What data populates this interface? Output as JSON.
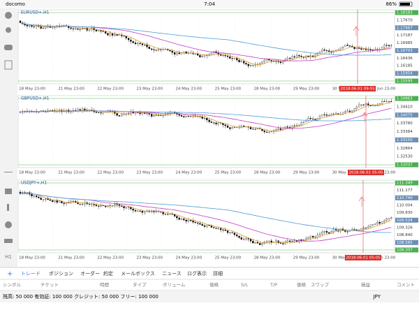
{
  "status": {
    "carrier": "docomo",
    "time": "7:04",
    "battery": "86%"
  },
  "charts": [
    {
      "symbol": "EURUSD+,H1",
      "cursor_time": "2018.06.01 09:55",
      "prices": [
        "1.18183",
        "1.17670",
        "1.17467",
        "1.17187",
        "1.16985",
        "1.16703",
        "1.16436",
        "1.16185",
        "1.15954",
        "1.15595"
      ]
    },
    {
      "symbol": "GBPUSD+,H1",
      "cursor_time": "2018.06.01 05:05",
      "prices": [
        "1.34863",
        "1.34410",
        "1.34075",
        "1.33780",
        "1.33384",
        "1.33150",
        "1.32864",
        "1.32530",
        "1.32037"
      ]
    },
    {
      "symbol": "USDJPY+,H1",
      "cursor_time": "2018.06.01 05:05",
      "prices": [
        "111.349",
        "111.177",
        "110.740",
        "110.004",
        "109.830",
        "109.524",
        "109.326",
        "108.840",
        "108.585",
        "108.307"
      ]
    }
  ],
  "time_axis": [
    "18 May 23:00",
    "21 May 23:00",
    "22 May 23:00",
    "23 May 23:00",
    "24 May 23:00",
    "25 May 23:00",
    "28 May 23:00",
    "29 May 23:00",
    "30 May 23:00",
    "1 Jun 23:00"
  ],
  "sidebar": {
    "timeframe": "H1"
  },
  "tabs": [
    "トレード",
    "ポジション",
    "オーダー",
    "約定",
    "メールボックス",
    "ニュース",
    "ログ表示",
    "詳細"
  ],
  "columns": [
    "シンボル",
    "チケット",
    "時間",
    "タイプ",
    "ボリューム",
    "価格",
    "S/L",
    "T/P",
    "価格",
    "スワップ",
    "損益",
    "コメント"
  ],
  "footer": {
    "summary": "残高: 50 000 有効証: 100 000 クレジット: 50 000 フリー: 100 000",
    "currency": "JPY"
  }
}
